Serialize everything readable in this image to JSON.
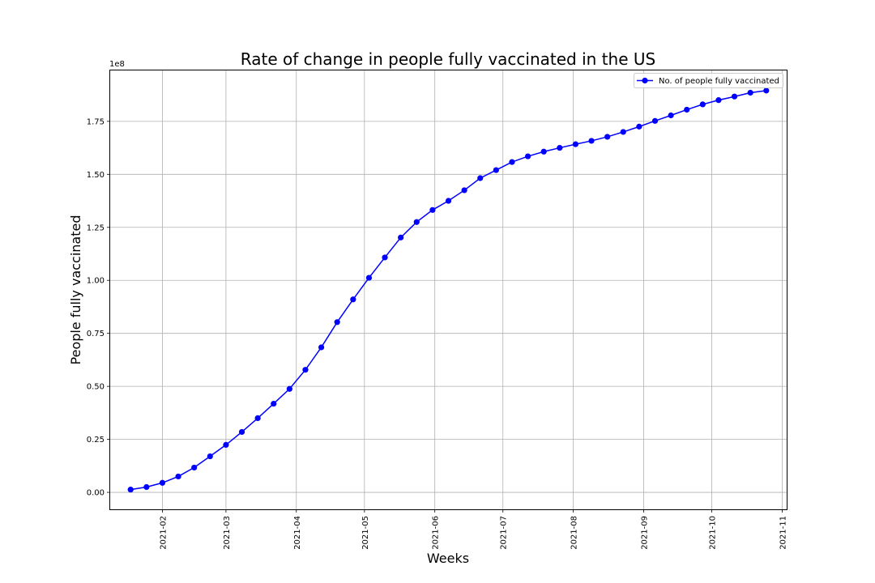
{
  "chart_data": {
    "type": "line",
    "title": "Rate of change in people fully vaccinated in the US",
    "xlabel": "Weeks",
    "ylabel": "People fully vaccinated",
    "y_offset_text": "1e8",
    "y_scale_note": "values in units of 1e8 people",
    "xlim": [
      "2021-01-09",
      "2021-11-03"
    ],
    "ylim": [
      -0.08,
      1.99
    ],
    "grid": true,
    "legend_position": "top-right",
    "x_ticks": [
      {
        "date": "2021-02-01",
        "label": "2021-02"
      },
      {
        "date": "2021-03-01",
        "label": "2021-03"
      },
      {
        "date": "2021-04-01",
        "label": "2021-04"
      },
      {
        "date": "2021-05-01",
        "label": "2021-05"
      },
      {
        "date": "2021-06-01",
        "label": "2021-06"
      },
      {
        "date": "2021-07-01",
        "label": "2021-07"
      },
      {
        "date": "2021-08-01",
        "label": "2021-08"
      },
      {
        "date": "2021-09-01",
        "label": "2021-09"
      },
      {
        "date": "2021-10-01",
        "label": "2021-10"
      },
      {
        "date": "2021-11-01",
        "label": "2021-11"
      }
    ],
    "y_ticks": [
      {
        "value": 0.0,
        "label": "0.00"
      },
      {
        "value": 0.25,
        "label": "0.25"
      },
      {
        "value": 0.5,
        "label": "0.50"
      },
      {
        "value": 0.75,
        "label": "0.75"
      },
      {
        "value": 1.0,
        "label": "1.00"
      },
      {
        "value": 1.25,
        "label": "1.25"
      },
      {
        "value": 1.5,
        "label": "1.50"
      },
      {
        "value": 1.75,
        "label": "1.75"
      }
    ],
    "series": [
      {
        "name": "No. of people fully vaccinated",
        "color": "#0000ff",
        "marker": "circle",
        "x": [
          "2021-01-18",
          "2021-01-25",
          "2021-02-01",
          "2021-02-08",
          "2021-02-15",
          "2021-02-22",
          "2021-03-01",
          "2021-03-08",
          "2021-03-15",
          "2021-03-22",
          "2021-03-29",
          "2021-04-05",
          "2021-04-12",
          "2021-04-19",
          "2021-04-26",
          "2021-05-03",
          "2021-05-10",
          "2021-05-17",
          "2021-05-24",
          "2021-05-31",
          "2021-06-07",
          "2021-06-14",
          "2021-06-21",
          "2021-06-28",
          "2021-07-05",
          "2021-07-12",
          "2021-07-19",
          "2021-07-26",
          "2021-08-02",
          "2021-08-09",
          "2021-08-16",
          "2021-08-23",
          "2021-08-30",
          "2021-09-06",
          "2021-09-13",
          "2021-09-20",
          "2021-09-27",
          "2021-10-04",
          "2021-10-11",
          "2021-10-18",
          "2021-10-25"
        ],
        "y": [
          0.013,
          0.025,
          0.045,
          0.075,
          0.117,
          0.17,
          0.224,
          0.285,
          0.35,
          0.418,
          0.488,
          0.578,
          0.684,
          0.803,
          0.91,
          1.012,
          1.108,
          1.202,
          1.275,
          1.332,
          1.375,
          1.425,
          1.482,
          1.52,
          1.558,
          1.585,
          1.607,
          1.625,
          1.642,
          1.658,
          1.677,
          1.7,
          1.725,
          1.752,
          1.778,
          1.805,
          1.83,
          1.85,
          1.867,
          1.885,
          1.895
        ]
      }
    ]
  }
}
